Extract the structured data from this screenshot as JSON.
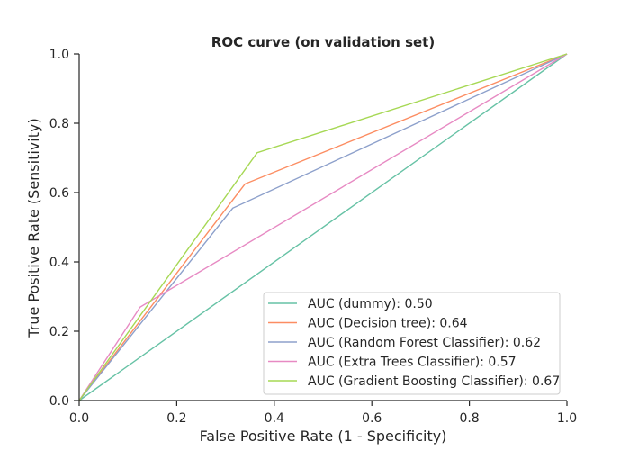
{
  "chart_data": {
    "type": "line",
    "title": "ROC curve (on validation set)",
    "xlabel": "False Positive Rate (1 - Specificity)",
    "ylabel": "True Positive Rate (Sensitivity)",
    "xlim": [
      0,
      1
    ],
    "ylim": [
      0,
      1
    ],
    "x_ticks": [
      "0.0",
      "0.2",
      "0.4",
      "0.6",
      "0.8",
      "1.0"
    ],
    "y_ticks": [
      "0.0",
      "0.2",
      "0.4",
      "0.6",
      "0.8",
      "1.0"
    ],
    "grid": false,
    "legend_position": "lower-right",
    "series": [
      {
        "name": "AUC (dummy): 0.50",
        "color": "#66c2a5",
        "x": [
          0,
          1
        ],
        "y": [
          0,
          1
        ]
      },
      {
        "name": "AUC (Decision tree): 0.64",
        "color": "#fc8d62",
        "x": [
          0,
          0.34,
          1
        ],
        "y": [
          0,
          0.625,
          1
        ]
      },
      {
        "name": "AUC (Random Forest Classifier): 0.62",
        "color": "#8da0cb",
        "x": [
          0,
          0.315,
          1
        ],
        "y": [
          0,
          0.555,
          1
        ]
      },
      {
        "name": "AUC (Extra Trees Classifier): 0.57",
        "color": "#e78ac3",
        "x": [
          0,
          0.125,
          1
        ],
        "y": [
          0,
          0.27,
          1
        ]
      },
      {
        "name": "AUC (Gradient Boosting Classifier): 0.67",
        "color": "#a6d854",
        "x": [
          0,
          0.365,
          1
        ],
        "y": [
          0,
          0.715,
          1
        ]
      }
    ]
  }
}
